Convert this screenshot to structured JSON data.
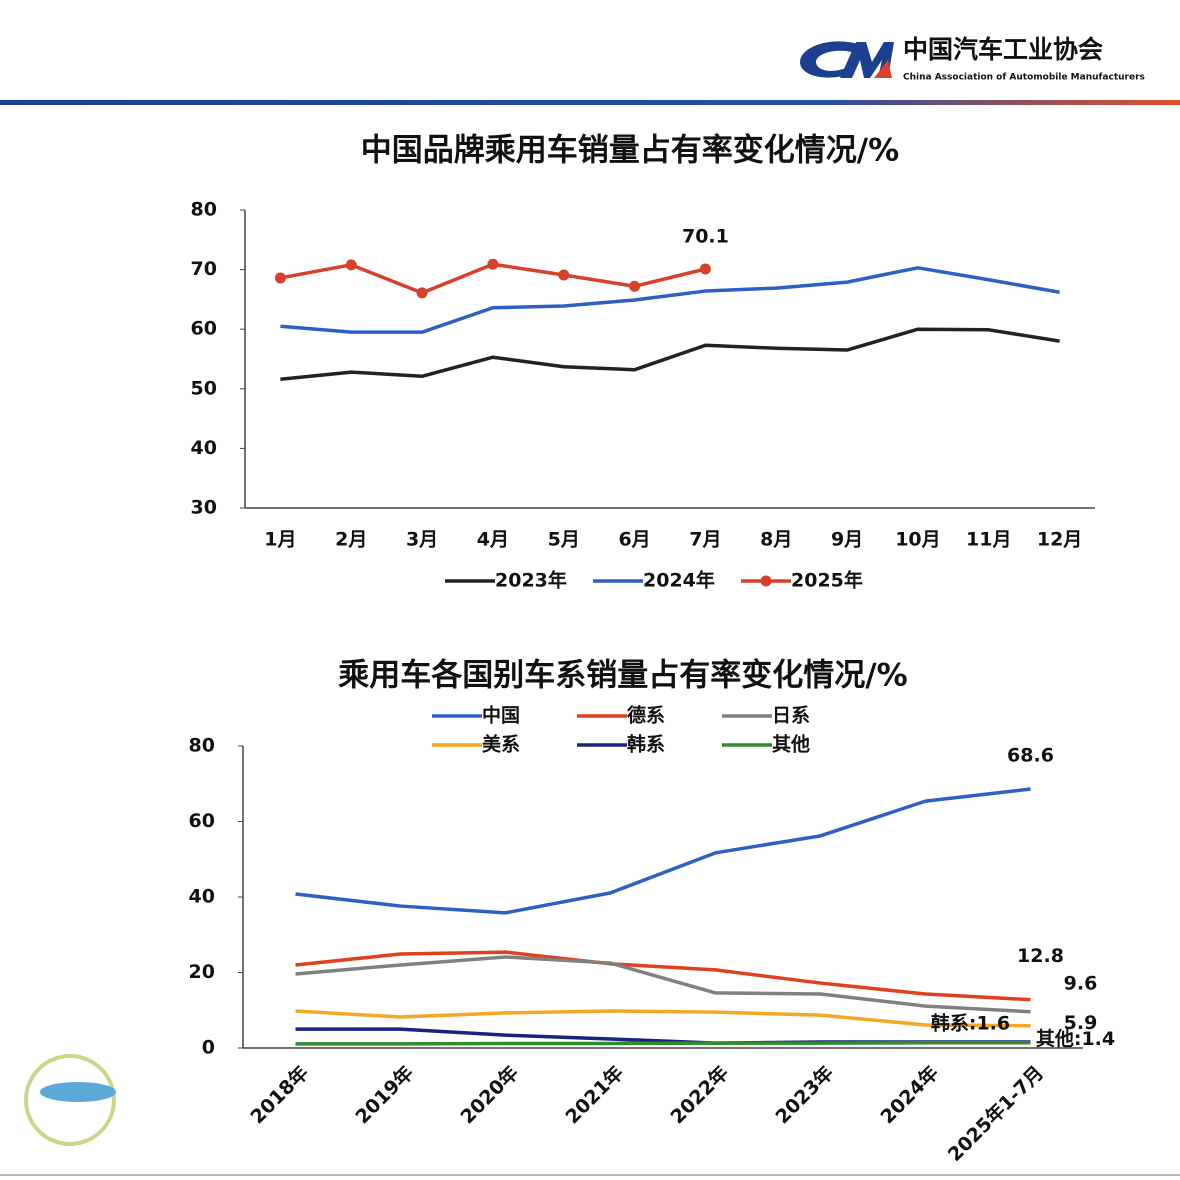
{
  "header": {
    "org_name": "中国汽车工业协会",
    "org_name_en": "China Association of Automobile Manufacturers"
  },
  "chart_data": [
    {
      "type": "line",
      "title": "中国品牌乘用车销量占有率变化情况/%",
      "categories": [
        "1月",
        "2月",
        "3月",
        "4月",
        "5月",
        "6月",
        "7月",
        "8月",
        "9月",
        "10月",
        "11月",
        "12月"
      ],
      "ylim": [
        30,
        80
      ],
      "yticks": [
        30,
        40,
        50,
        60,
        70,
        80
      ],
      "grid": false,
      "legend": "bottom",
      "series": [
        {
          "name": "2023年",
          "color": "#222222",
          "values": [
            51.6,
            52.8,
            52.1,
            55.3,
            53.7,
            53.2,
            57.3,
            56.8,
            56.5,
            60.0,
            59.9,
            58.0
          ]
        },
        {
          "name": "2024年",
          "color": "#2f5fc4",
          "values": [
            60.5,
            59.5,
            59.5,
            63.6,
            63.9,
            64.9,
            66.4,
            66.9,
            67.9,
            70.3,
            68.3,
            66.2
          ]
        },
        {
          "name": "2025年",
          "color": "#d9402a",
          "markers": true,
          "values": [
            68.6,
            70.8,
            66.1,
            70.9,
            69.1,
            67.2,
            70.1,
            null,
            null,
            null,
            null,
            null
          ],
          "value_labels": [
            null,
            null,
            null,
            null,
            null,
            null,
            "70.1",
            null,
            null,
            null,
            null,
            null
          ]
        }
      ]
    },
    {
      "type": "line",
      "title": "乘用车各国别车系销量占有率变化情况/%",
      "categories": [
        "2018年",
        "2019年",
        "2020年",
        "2021年",
        "2022年",
        "2023年",
        "2024年",
        "2025年1-7月"
      ],
      "ylim": [
        0,
        80
      ],
      "yticks": [
        0,
        20,
        40,
        60,
        80
      ],
      "grid": false,
      "legend": "top",
      "series": [
        {
          "name": "中国",
          "color": "#2f5fc4",
          "values": [
            40.8,
            37.6,
            35.8,
            41.1,
            51.7,
            56.2,
            65.4,
            68.6
          ],
          "value_labels": [
            null,
            null,
            null,
            null,
            null,
            null,
            null,
            "68.6"
          ]
        },
        {
          "name": "德系",
          "color": "#e0401f",
          "values": [
            22.0,
            24.9,
            25.4,
            22.3,
            20.7,
            17.2,
            14.3,
            12.8
          ],
          "value_labels": [
            null,
            null,
            null,
            null,
            null,
            null,
            null,
            "12.8"
          ]
        },
        {
          "name": "日系",
          "color": "#808080",
          "values": [
            19.6,
            22.0,
            24.1,
            22.5,
            14.6,
            14.3,
            11.1,
            9.6
          ],
          "value_labels": [
            null,
            null,
            null,
            null,
            null,
            null,
            null,
            "9.6"
          ]
        },
        {
          "name": "美系",
          "color": "#f5a623",
          "values": [
            9.8,
            8.2,
            9.3,
            9.8,
            9.5,
            8.7,
            6.1,
            5.9
          ],
          "value_labels": [
            null,
            null,
            null,
            null,
            null,
            null,
            null,
            "5.9"
          ]
        },
        {
          "name": "韩系",
          "color": "#1a237e",
          "values": [
            5.0,
            5.0,
            3.4,
            2.4,
            1.3,
            1.6,
            1.6,
            1.6
          ],
          "value_labels": [
            null,
            null,
            null,
            null,
            null,
            null,
            null,
            "韩系:1.6"
          ]
        },
        {
          "name": "其他",
          "color": "#2e8b2e",
          "values": [
            1.1,
            1.1,
            1.2,
            1.2,
            1.3,
            1.3,
            1.4,
            1.4
          ],
          "value_labels": [
            null,
            null,
            null,
            null,
            null,
            null,
            null,
            "其他:1.4"
          ]
        }
      ]
    }
  ]
}
